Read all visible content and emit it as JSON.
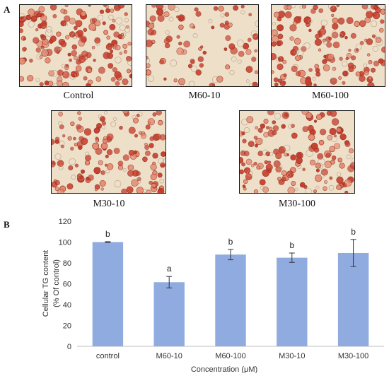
{
  "panel_a_label": "A",
  "panel_b_label": "B",
  "micrographs": [
    {
      "caption": "Control",
      "density": 0.9
    },
    {
      "caption": "M60-10",
      "density": 0.45
    },
    {
      "caption": "M60-100",
      "density": 0.8
    },
    {
      "caption": "M30-10",
      "density": 0.75
    },
    {
      "caption": "M30-100",
      "density": 0.8
    }
  ],
  "colors": {
    "bar": "#8fabe0",
    "stain": "#c8402e",
    "stain_dark": "#8e2a1d",
    "background": "#eedfc9"
  },
  "chart_data": {
    "type": "bar",
    "categories": [
      "control",
      "M60-10",
      "M60-100",
      "M30-10",
      "M30-100"
    ],
    "values": [
      100,
      61.5,
      88,
      85,
      89.5
    ],
    "errors": [
      0.4,
      5.5,
      5,
      4.5,
      13
    ],
    "significance_letters": [
      "b",
      "a",
      "b",
      "b",
      "b"
    ],
    "xlabel": "Concentration (μM)",
    "ylabel_line1": "Cellular TG content",
    "ylabel_line2": "(% Of control)",
    "ylim": [
      0,
      120
    ],
    "yticks": [
      0,
      20,
      40,
      60,
      80,
      100,
      120
    ],
    "grid": false,
    "legend": "none"
  }
}
